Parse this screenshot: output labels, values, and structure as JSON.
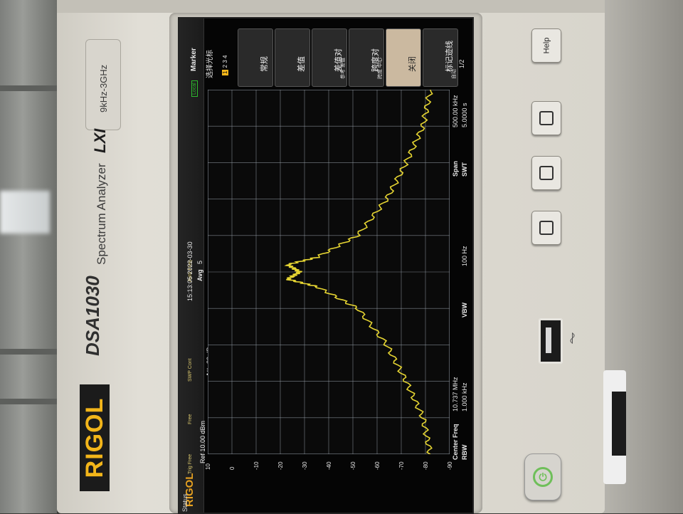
{
  "brand": {
    "logo": "RIGOL",
    "model": "DSA1030",
    "product": "Spectrum Analyzer",
    "lxi": "LXI",
    "freq_range": "9kHz-3GHz"
  },
  "hardware_buttons": [
    {
      "id": "help",
      "label": "Help"
    },
    {
      "id": "key2",
      "label": ""
    },
    {
      "id": "key3",
      "label": ""
    },
    {
      "id": "key4",
      "label": ""
    }
  ],
  "screen": {
    "brand_mark": "RIGOL",
    "status_title": "Status",
    "local_badge": "Local",
    "header": {
      "ref_level": "Ref 10.00 dBm",
      "att_label": "Att",
      "att_value": "20 dB",
      "timestamp": "15:13:05 2022-03-30",
      "avg_label": "Avg",
      "avg_value": "5"
    },
    "status_items": [
      {
        "label": "Trig\nFree"
      },
      {
        "label": "Free"
      },
      {
        "label": "SWP\nCont"
      },
      {
        "label": "Auto\nFreq"
      }
    ],
    "y_ticks": [
      "0",
      "-10",
      "-20",
      "-30",
      "-40",
      "-50",
      "-60",
      "-70",
      "-80",
      "-90"
    ],
    "top_tick": "10",
    "footer": {
      "center_label": "Center Freq",
      "center_value": "10.737 MHz",
      "rbw_label": "RBW",
      "rbw_value": "1.000 kHz",
      "vbw_label": "VBW",
      "vbw_value": "100 Hz",
      "span_label": "Span",
      "span_value": "500.00 kHz",
      "swt_label": "SWT",
      "swt_value": "5.0000 s"
    },
    "menu": {
      "title": "Marker",
      "select_label": "选择光标",
      "markers": [
        "1",
        "2",
        "3",
        "4"
      ],
      "selected_marker": "1",
      "buttons": [
        {
          "label": "常规",
          "sub": ""
        },
        {
          "label": "差值",
          "sub": ""
        },
        {
          "label": "差值对",
          "sub": "参考  差值"
        },
        {
          "label": "跨度对",
          "sub": "跨度  中心"
        },
        {
          "label": "关闭",
          "sub": ""
        },
        {
          "label": "标记迹线",
          "sub": "自动"
        }
      ],
      "page": "1/2"
    }
  },
  "colors": {
    "trace": "#e6d532",
    "grid": "#9aa3ad",
    "brand_yellow": "#f2b51a",
    "screen_bg": "#050505"
  },
  "chart_data": {
    "type": "line",
    "xlabel": "",
    "ylabel": "",
    "x_unit": "MHz",
    "y_unit": "dBm",
    "x": [
      10.487,
      10.537,
      10.587,
      10.637,
      10.687,
      10.717,
      10.727,
      10.737,
      10.747,
      10.757,
      10.787,
      10.837,
      10.887,
      10.937,
      10.987
    ],
    "y": [
      -82,
      -79,
      -72,
      -64,
      -52,
      -35,
      -23,
      -28,
      -23,
      -35,
      -52,
      -64,
      -72,
      -79,
      -82
    ],
    "xlim": [
      10.487,
      10.987
    ],
    "ylim": [
      -90,
      10
    ],
    "grid": true
  }
}
